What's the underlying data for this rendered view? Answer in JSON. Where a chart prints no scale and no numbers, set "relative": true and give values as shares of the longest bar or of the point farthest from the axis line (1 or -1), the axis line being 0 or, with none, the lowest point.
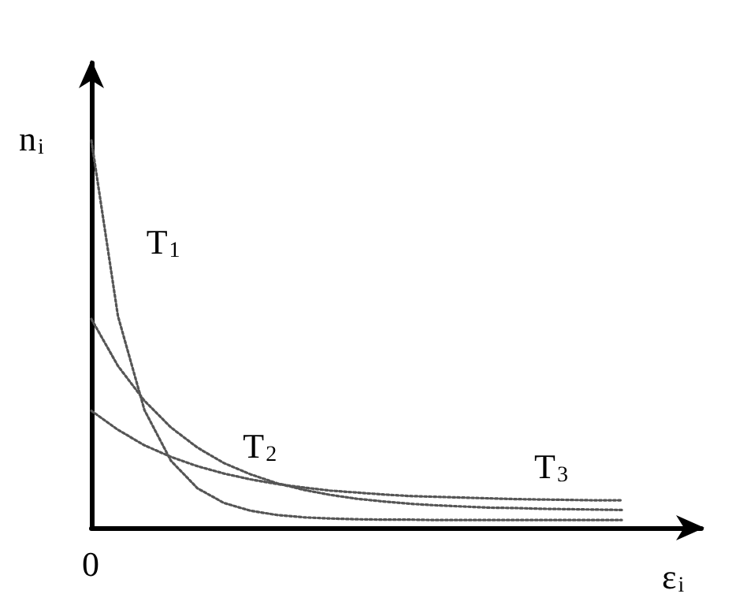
{
  "chart_data": {
    "type": "line",
    "relative": true,
    "xlabel": "ε$_{i}$",
    "ylabel": "n$_{i}$",
    "annotations": [
      "0"
    ],
    "categories": [
      null,
      null,
      null,
      null,
      null,
      null,
      null,
      null,
      null,
      null,
      null,
      null,
      null,
      null,
      null,
      null,
      null,
      null,
      null,
      null,
      null,
      null,
      null,
      null
    ],
    "series": [
      {
        "name": "T$_{1}$",
        "color": "#555555",
        "values": [
          1,
          0.547,
          0.304,
          0.173,
          0.102,
          0.064,
          0.044,
          0.033,
          0.027,
          0.024,
          0.022,
          0.021,
          0.021,
          0.02,
          0.02,
          0.02,
          0.02,
          0.02,
          0.02,
          0.02,
          0.02,
          null,
          null,
          null
        ]
      },
      {
        "name": "T$_{2}$",
        "color": "#555555",
        "values": [
          0.539,
          0.418,
          0.328,
          0.259,
          0.207,
          0.167,
          0.138,
          0.115,
          0.098,
          0.085,
          0.075,
          0.068,
          0.062,
          0.058,
          0.055,
          0.052,
          0.051,
          0.049,
          0.048,
          0.047,
          0.046,
          null,
          null,
          null
        ]
      },
      {
        "name": "T$_{3}$",
        "color": "#555555",
        "values": [
          0.302,
          0.253,
          0.213,
          0.183,
          0.159,
          0.14,
          0.125,
          0.113,
          0.104,
          0.096,
          0.091,
          0.086,
          0.082,
          0.08,
          0.078,
          0.076,
          0.074,
          0.073,
          0.072,
          0.071,
          0.071,
          null,
          null,
          null
        ]
      }
    ],
    "marker": "none",
    "line_style": "dotted",
    "legend": false,
    "grid": false
  }
}
